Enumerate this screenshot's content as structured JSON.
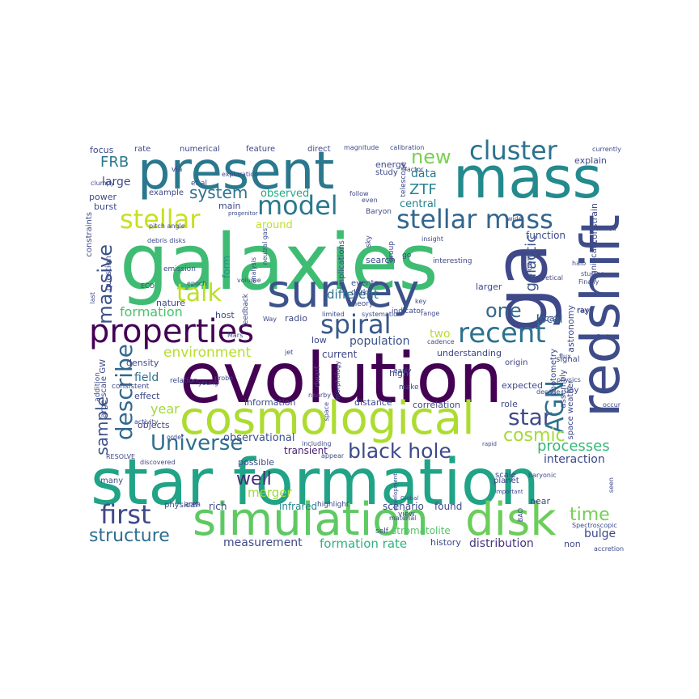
{
  "words": [
    {
      "text": "galaxies",
      "color": "#3fbc73"
    },
    {
      "text": "evolution",
      "color": "#440154"
    },
    {
      "text": "star formation",
      "color": "#20a386"
    },
    {
      "text": "present",
      "color": "#29788e"
    },
    {
      "text": "mass",
      "color": "#238a8d"
    },
    {
      "text": "survey",
      "color": "#3b528b"
    },
    {
      "text": "ga",
      "color": "#3f4889"
    },
    {
      "text": "redshift",
      "color": "#3e4c8a"
    },
    {
      "text": "cosmological",
      "color": "#addc30"
    },
    {
      "text": "simulation",
      "color": "#5ec962"
    },
    {
      "text": "disk",
      "color": "#6ccd5a"
    },
    {
      "text": "properties",
      "color": "#440154"
    },
    {
      "text": "recent",
      "color": "#2c728e"
    },
    {
      "text": "cluster",
      "color": "#2c728e"
    },
    {
      "text": "stellar mass",
      "color": "#31668e"
    },
    {
      "text": "model",
      "color": "#2a788e"
    },
    {
      "text": "stellar",
      "color": "#c8e020"
    },
    {
      "text": "talk",
      "color": "#bddf26"
    },
    {
      "text": "spiral",
      "color": "#38598c"
    },
    {
      "text": "Universe",
      "color": "#2e6f8e"
    },
    {
      "text": "black hole",
      "color": "#3e4a89"
    },
    {
      "text": "first",
      "color": "#3e4989"
    },
    {
      "text": "star",
      "color": "#3e4a89"
    },
    {
      "text": "AGN",
      "color": "#2d708e"
    },
    {
      "text": "describe",
      "color": "#31688e"
    },
    {
      "text": "massive",
      "color": "#3b528b"
    },
    {
      "text": "cosmic",
      "color": "#a5db36"
    },
    {
      "text": "time",
      "color": "#73d056"
    },
    {
      "text": "well",
      "color": "#472d7b"
    },
    {
      "text": "structure",
      "color": "#2e6e8e"
    },
    {
      "text": "one",
      "color": "#31688e"
    },
    {
      "text": "new",
      "color": "#7ad151"
    },
    {
      "text": "system",
      "color": "#2c728e"
    },
    {
      "text": "galactic",
      "color": "#3b528b"
    },
    {
      "text": "processes",
      "color": "#35b779"
    },
    {
      "text": "environment",
      "color": "#b5de2b"
    },
    {
      "text": "formation",
      "color": "#4ac16d"
    },
    {
      "text": "FRB",
      "color": "#29798e"
    },
    {
      "text": "ZTF",
      "color": "#26828e"
    },
    {
      "text": "sample",
      "color": "#3b528b"
    },
    {
      "text": "year",
      "color": "#a2da37"
    },
    {
      "text": "formation rate",
      "color": "#2db27d"
    },
    {
      "text": "merger",
      "color": "#a0da39"
    },
    {
      "text": "measurement",
      "color": "#3e4989"
    },
    {
      "text": "distribution",
      "color": "#46337f"
    },
    {
      "text": "bulge",
      "color": "#3e4989"
    },
    {
      "text": "interaction",
      "color": "#3e4989"
    },
    {
      "text": "data",
      "color": "#2a788e"
    },
    {
      "text": "two",
      "color": "#bade28"
    },
    {
      "text": "local",
      "color": "#2d718e"
    },
    {
      "text": "different",
      "color": "#2d718e"
    },
    {
      "text": "population",
      "color": "#3b528b"
    },
    {
      "text": "field",
      "color": "#2e6f8e"
    },
    {
      "text": "around",
      "color": "#bddf26"
    },
    {
      "text": "form",
      "color": "#21918c"
    },
    {
      "text": "central",
      "color": "#26828e"
    },
    {
      "text": "function",
      "color": "#3e4a89"
    },
    {
      "text": "large",
      "color": "#3e4a89"
    },
    {
      "text": "observed",
      "color": "#22a884"
    },
    {
      "text": "current",
      "color": "#404688"
    },
    {
      "text": "observational",
      "color": "#3b528b"
    },
    {
      "text": "transient",
      "color": "#482173"
    },
    {
      "text": "infrared",
      "color": "#25848e"
    },
    {
      "text": "rich",
      "color": "#3e4989"
    },
    {
      "text": "scenario",
      "color": "#3e4989"
    },
    {
      "text": "found",
      "color": "#3e4989"
    },
    {
      "text": "stromatolite",
      "color": "#52c569"
    },
    {
      "text": "history",
      "color": "#3e4989"
    },
    {
      "text": "possible",
      "color": "#3e4989"
    },
    {
      "text": "near",
      "color": "#3e4989"
    },
    {
      "text": "non",
      "color": "#3e4989"
    },
    {
      "text": "role",
      "color": "#3e4989"
    },
    {
      "text": "local",
      "color": "#3e4989"
    },
    {
      "text": "expected",
      "color": "#3e4989"
    },
    {
      "text": "understanding",
      "color": "#3e4989"
    },
    {
      "text": "high",
      "color": "#3e4989"
    },
    {
      "text": "correlation",
      "color": "#3e4989"
    },
    {
      "text": "information",
      "color": "#3e4989"
    },
    {
      "text": "distance",
      "color": "#3e4989"
    },
    {
      "text": "effect",
      "color": "#3e4989"
    },
    {
      "text": "density",
      "color": "#3e4989"
    },
    {
      "text": "objects",
      "color": "#3e4989"
    },
    {
      "text": "host",
      "color": "#3e4989"
    },
    {
      "text": "radio",
      "color": "#3e4989"
    },
    {
      "text": "low",
      "color": "#3e4989"
    },
    {
      "text": "nature",
      "color": "#3e4989"
    },
    {
      "text": "larger",
      "color": "#3e4989"
    },
    {
      "text": "search",
      "color": "#3e4989"
    },
    {
      "text": "energy",
      "color": "#3e4989"
    },
    {
      "text": "main",
      "color": "#3e4989"
    },
    {
      "text": "example",
      "color": "#3e4989"
    },
    {
      "text": "power",
      "color": "#3e4989"
    },
    {
      "text": "burst",
      "color": "#3e4989"
    },
    {
      "text": "focus",
      "color": "#3e4989"
    },
    {
      "text": "rate",
      "color": "#3e4989"
    },
    {
      "text": "numerical",
      "color": "#3e4989"
    },
    {
      "text": "feature",
      "color": "#3e4989"
    },
    {
      "text": "direct",
      "color": "#3e4989"
    },
    {
      "text": "explain",
      "color": "#3e4989"
    },
    {
      "text": "study",
      "color": "#3e4989"
    },
    {
      "text": "constrain",
      "color": "#3e4989"
    },
    {
      "text": "significant",
      "color": "#3e4989"
    },
    {
      "text": "astronomy",
      "color": "#3e4989"
    },
    {
      "text": "space weather",
      "color": "#3e4989"
    },
    {
      "text": "ray",
      "color": "#3e4989"
    },
    {
      "text": "signal",
      "color": "#3e4989"
    },
    {
      "text": "day",
      "color": "#3e4989"
    },
    {
      "text": "planet",
      "color": "#3e4989"
    },
    {
      "text": "scale",
      "color": "#3e4989"
    },
    {
      "text": "origin",
      "color": "#3e4989"
    },
    {
      "text": "assembly",
      "color": "#3e4989"
    },
    {
      "text": "photometry",
      "color": "#3e4989"
    },
    {
      "text": "implications",
      "color": "#3e4989"
    },
    {
      "text": "events",
      "color": "#3e4989"
    },
    {
      "text": "GW",
      "color": "#3e4989"
    },
    {
      "text": "large scale",
      "color": "#3e4989"
    },
    {
      "text": "many",
      "color": "#3e4989"
    },
    {
      "text": "physical",
      "color": "#3e4989"
    },
    {
      "text": "area",
      "color": "#3e4989"
    },
    {
      "text": "highlight",
      "color": "#3e4989"
    },
    {
      "text": "self",
      "color": "#3e4989"
    },
    {
      "text": "view",
      "color": "#3e4989"
    },
    {
      "text": "constraints",
      "color": "#3e4989"
    },
    {
      "text": "question",
      "color": "#3e4989"
    },
    {
      "text": "emission",
      "color": "#3e4989"
    },
    {
      "text": "et al",
      "color": "#3e4989"
    },
    {
      "text": "via",
      "color": "#3e4989"
    },
    {
      "text": "Baryon",
      "color": "#3e4989"
    },
    {
      "text": "telescope",
      "color": "#3e4989"
    },
    {
      "text": "group",
      "color": "#3e4989"
    },
    {
      "text": "sky",
      "color": "#3e4989"
    },
    {
      "text": "go",
      "color": "#3e4989"
    },
    {
      "text": "interesting",
      "color": "#3e4989"
    },
    {
      "text": "known",
      "color": "#3e4989"
    },
    {
      "text": "dark",
      "color": "#3e4989"
    },
    {
      "text": "theory",
      "color": "#3e4989"
    },
    {
      "text": "indicator",
      "color": "#3e4989"
    },
    {
      "text": "early",
      "color": "#3e4989"
    },
    {
      "text": "make",
      "color": "#3e4989"
    },
    {
      "text": "dwarf",
      "color": "#3e4989"
    },
    {
      "text": "feedback",
      "color": "#3e4989"
    },
    {
      "text": "relation",
      "color": "#3e4989"
    },
    {
      "text": "consistent",
      "color": "#3e4989"
    },
    {
      "text": "addition",
      "color": "#3e4989"
    },
    {
      "text": "young",
      "color": "#3e4989"
    },
    {
      "text": "probe",
      "color": "#3e4989"
    },
    {
      "text": "morphology",
      "color": "#3e4989"
    },
    {
      "text": "material",
      "color": "#3e4989"
    },
    {
      "text": "including",
      "color": "#3e4989"
    },
    {
      "text": "appear",
      "color": "#3e4989"
    },
    {
      "text": "discovered",
      "color": "#3e4989"
    },
    {
      "text": "order",
      "color": "#3e4989"
    },
    {
      "text": "RESOLVE",
      "color": "#3e4989"
    },
    {
      "text": "space",
      "color": "#3e4989"
    },
    {
      "text": "development",
      "color": "#3e4989"
    },
    {
      "text": "Global",
      "color": "#3e4989"
    },
    {
      "text": "rapid",
      "color": "#3e4989"
    },
    {
      "text": "baryonic",
      "color": "#3e4989"
    },
    {
      "text": "important",
      "color": "#3e4989"
    },
    {
      "text": "seen",
      "color": "#3e4989"
    },
    {
      "text": "BAO",
      "color": "#3e4989"
    },
    {
      "text": "Spectroscopic",
      "color": "#3e4989"
    },
    {
      "text": "accretion",
      "color": "#3e4989"
    },
    {
      "text": "physics",
      "color": "#3e4989"
    },
    {
      "text": "decade",
      "color": "#3e4989"
    },
    {
      "text": "flux",
      "color": "#3e4989"
    },
    {
      "text": "find",
      "color": "#3e4989"
    },
    {
      "text": "occur",
      "color": "#3e4989"
    },
    {
      "text": "studies",
      "color": "#3e4989"
    },
    {
      "text": "theoretical",
      "color": "#3e4989"
    },
    {
      "text": "Finally",
      "color": "#3e4989"
    },
    {
      "text": "halo",
      "color": "#3e4989"
    },
    {
      "text": "formed",
      "color": "#3e4989"
    },
    {
      "text": "wide",
      "color": "#3e4989"
    },
    {
      "text": "insight",
      "color": "#3e4989"
    },
    {
      "text": "neutral gas",
      "color": "#3e4989"
    },
    {
      "text": "analysis",
      "color": "#3e4989"
    },
    {
      "text": "volume",
      "color": "#3e4989"
    },
    {
      "text": "epoch",
      "color": "#3e4989"
    },
    {
      "text": "ECO",
      "color": "#3e4989"
    },
    {
      "text": "last",
      "color": "#3e4989"
    },
    {
      "text": "debris disks",
      "color": "#3e4989"
    },
    {
      "text": "pitch angle",
      "color": "#3e4989"
    },
    {
      "text": "activity",
      "color": "#3e4989"
    },
    {
      "text": "Mars",
      "color": "#3e4989"
    },
    {
      "text": "Way",
      "color": "#3e4989"
    },
    {
      "text": "limited",
      "color": "#3e4989"
    },
    {
      "text": "systematic",
      "color": "#3e4989"
    },
    {
      "text": "range",
      "color": "#3e4989"
    },
    {
      "text": "cadence",
      "color": "#3e4989"
    },
    {
      "text": "jet",
      "color": "#3e4989"
    },
    {
      "text": "key",
      "color": "#3e4989"
    },
    {
      "text": "nearby",
      "color": "#3e4989"
    },
    {
      "text": "exploration",
      "color": "#3e4989"
    },
    {
      "text": "follow",
      "color": "#3e4989"
    },
    {
      "text": "even",
      "color": "#3e4989"
    },
    {
      "text": "factor",
      "color": "#3e4989"
    },
    {
      "text": "magnitude",
      "color": "#3e4989"
    },
    {
      "text": "calibration",
      "color": "#3e4989"
    },
    {
      "text": "currently",
      "color": "#3e4989"
    },
    {
      "text": "clumpy",
      "color": "#3e4989"
    },
    {
      "text": "progenitor",
      "color": "#3e4989"
    },
    {
      "text": "ray",
      "color": "#3e4989"
    }
  ]
}
